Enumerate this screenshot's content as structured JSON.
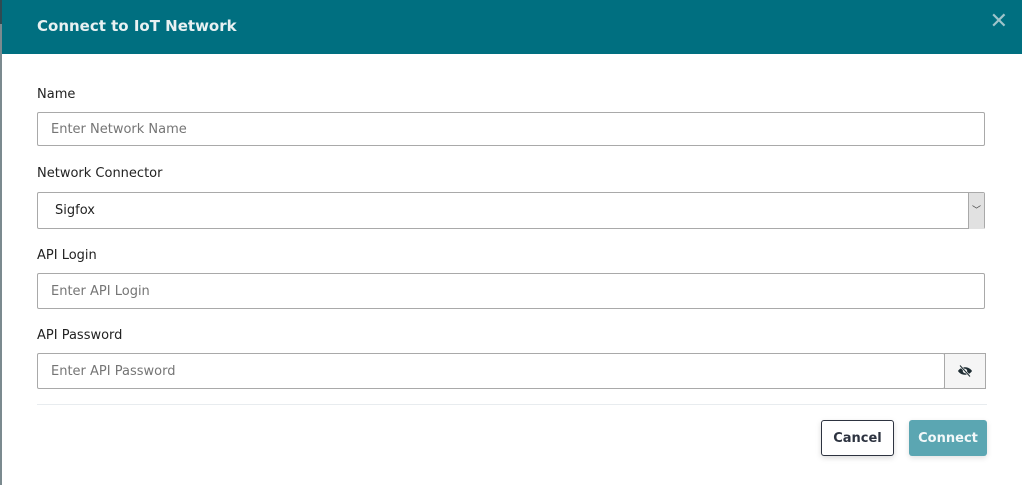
{
  "dialog": {
    "title": "Connect to IoT Network",
    "close_icon": "close-icon",
    "header_color": "#006f80"
  },
  "form": {
    "name": {
      "label": "Name",
      "placeholder": "Enter Network Name"
    },
    "connector": {
      "label": "Network Connector",
      "value": "Sigfox"
    },
    "api_login": {
      "label": "API Login",
      "placeholder": "Enter API Login"
    },
    "api_password": {
      "label": "API Password",
      "placeholder": "Enter API Password",
      "toggle_icon": "eye-slash-icon"
    }
  },
  "buttons": {
    "cancel": "Cancel",
    "connect": "Connect",
    "connect_color": "#5ba6b2"
  }
}
